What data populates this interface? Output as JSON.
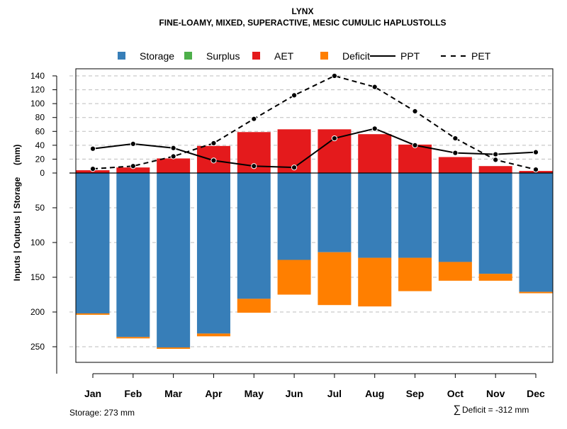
{
  "chart_data": {
    "type": "bar",
    "title": "LYNX",
    "subtitle": "FINE-LOAMY, MIXED, SUPERACTIVE, MESIC CUMULIC HAPLUSTOLLS",
    "ylabel": "Inputs | Outputs | Storage     (mm)",
    "categories": [
      "Jan",
      "Feb",
      "Mar",
      "Apr",
      "May",
      "Jun",
      "Jul",
      "Aug",
      "Sep",
      "Oct",
      "Nov",
      "Dec"
    ],
    "legend": [
      {
        "key": "storage",
        "label": "Storage",
        "kind": "box",
        "color": "#377EB8"
      },
      {
        "key": "surplus",
        "label": "Surplus",
        "kind": "box",
        "color": "#4DAF4A"
      },
      {
        "key": "aet",
        "label": "AET",
        "kind": "box",
        "color": "#E41A1C"
      },
      {
        "key": "deficit",
        "label": "Deficit",
        "kind": "box",
        "color": "#FF7F00"
      },
      {
        "key": "ppt",
        "label": "PPT",
        "kind": "solid-line",
        "color": "#000000"
      },
      {
        "key": "pet",
        "label": "PET",
        "kind": "dashed-line",
        "color": "#000000"
      }
    ],
    "upper_axis": {
      "ticks": [
        0,
        20,
        40,
        60,
        80,
        100,
        120,
        140
      ],
      "range": [
        0,
        140
      ]
    },
    "lower_axis": {
      "ticks": [
        50,
        100,
        150,
        200,
        250
      ],
      "range": [
        0,
        273
      ]
    },
    "series": [
      {
        "name": "AET",
        "values": [
          4,
          8,
          21,
          39,
          59,
          63,
          63,
          56,
          41,
          23,
          10,
          3
        ]
      },
      {
        "name": "Storage",
        "values": [
          202,
          236,
          251,
          231,
          181,
          125,
          114,
          122,
          122,
          128,
          145,
          171
        ]
      },
      {
        "name": "Deficit",
        "values": [
          2,
          2,
          2,
          4,
          20,
          50,
          76,
          70,
          48,
          27,
          10,
          2
        ]
      },
      {
        "name": "Surplus",
        "values": [
          0,
          0,
          0,
          0,
          0,
          0,
          0,
          0,
          0,
          0,
          0,
          0
        ]
      },
      {
        "name": "PPT",
        "values": [
          35,
          42,
          36,
          18,
          10,
          8,
          50,
          64,
          40,
          29,
          27,
          30
        ]
      },
      {
        "name": "PET",
        "values": [
          6,
          10,
          24,
          43,
          78,
          112,
          140,
          124,
          89,
          50,
          19,
          5
        ]
      }
    ]
  },
  "footer": {
    "storage": "Storage: 273 mm",
    "deficit_symbol": "∑",
    "deficit": "Deficit = -312 mm"
  }
}
